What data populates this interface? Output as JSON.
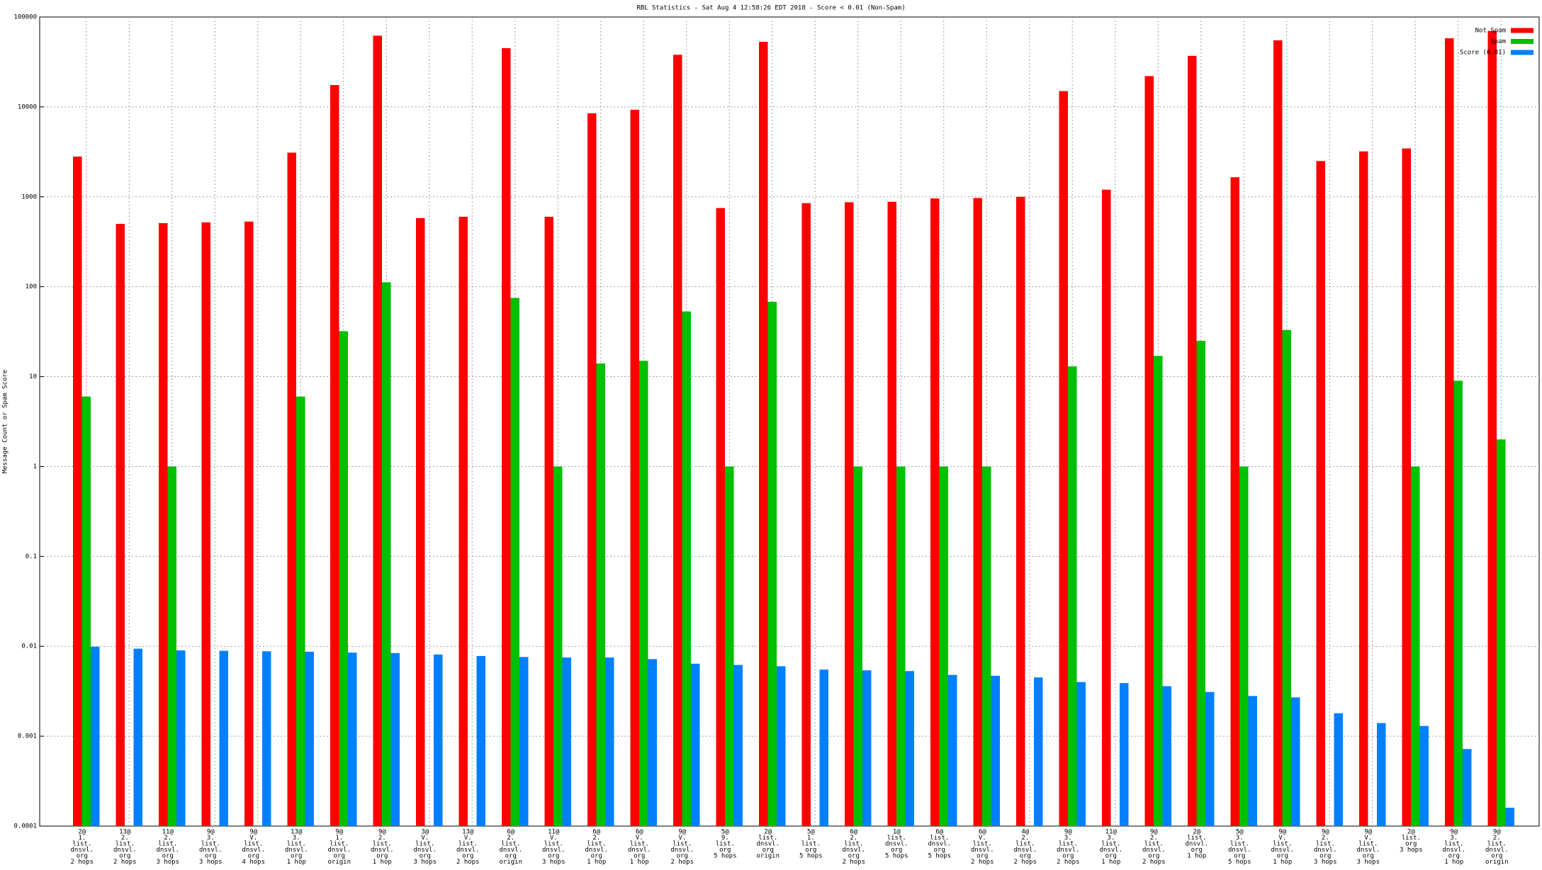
{
  "chart_data": {
    "type": "bar",
    "title": "RBL Statistics - Sat Aug  4 12:58:26 EDT 2018 - Score < 0.01 (Non-Spam)",
    "y_label": "Message Count or Spam Score",
    "log_scale": true,
    "grid": true,
    "legend": "top-right",
    "ylim": [
      0.0001,
      100000
    ],
    "yticks": [
      0.0001,
      0.001,
      0.01,
      0.1,
      1,
      10,
      100,
      1000,
      10000,
      100000
    ],
    "categories": [
      [
        "2@",
        "1.",
        "list.",
        "dnsvl.",
        "org",
        "2 hops"
      ],
      [
        "13@",
        "2.",
        "list.",
        "dnsvl.",
        "org",
        "2 hops"
      ],
      [
        "11@",
        "2.",
        "list.",
        "dnsvl.",
        "org",
        "3 hops"
      ],
      [
        "9@",
        "3.",
        "list.",
        "dnsvl.",
        "org",
        "3 hops"
      ],
      [
        "9@",
        "V.",
        "list.",
        "dnsvl.",
        "org",
        "4 hops"
      ],
      [
        "13@",
        "3.",
        "list.",
        "dnsvl.",
        "org",
        "1 hop"
      ],
      [
        "9@",
        "1.",
        "list.",
        "dnsvl.",
        "org",
        "origin"
      ],
      [
        "9@",
        "2.",
        "list.",
        "dnsvl.",
        "org",
        "1 hop"
      ],
      [
        "3@",
        "V.",
        "list.",
        "dnsvl.",
        "org",
        "3 hops"
      ],
      [
        "13@",
        "V.",
        "list.",
        "dnsvl.",
        "org",
        "2 hops"
      ],
      [
        "6@",
        "2.",
        "list.",
        "dnsvl.",
        "org",
        "origin"
      ],
      [
        "11@",
        "V.",
        "list.",
        "dnsvl.",
        "org",
        "3 hops"
      ],
      [
        "6@",
        "2.",
        "list.",
        "dnsvl.",
        "org",
        "1 hop"
      ],
      [
        "6@",
        "V.",
        "list.",
        "dnsvl.",
        "org",
        "1 hop"
      ],
      [
        "9@",
        "V.",
        "list.",
        "dnsvl.",
        "org",
        "2 hops"
      ],
      [
        "5@",
        "9.",
        "list.",
        "org",
        "5 hops"
      ],
      [
        "2@",
        "list.",
        "dnsvl.",
        "org",
        "origin"
      ],
      [
        "5@",
        "1.",
        "list.",
        "org",
        "5 hops"
      ],
      [
        "6@",
        "2.",
        "list.",
        "dnsvl.",
        "org",
        "2 hops"
      ],
      [
        "1@",
        "list.",
        "dnsvl.",
        "org",
        "5 hops"
      ],
      [
        "6@",
        "list.",
        "dnsvl.",
        "org",
        "5 hops"
      ],
      [
        "6@",
        "V.",
        "list.",
        "dnsvl.",
        "org",
        "2 hops"
      ],
      [
        "4@",
        "2.",
        "list.",
        "dnsvl.",
        "org",
        "2 hops"
      ],
      [
        "9@",
        "3.",
        "list.",
        "dnsvl.",
        "org",
        "2 hops"
      ],
      [
        "11@",
        "3.",
        "list.",
        "dnsvl.",
        "org",
        "1 hop"
      ],
      [
        "9@",
        "2.",
        "list.",
        "dnsvl.",
        "org",
        "2 hops"
      ],
      [
        "2@",
        "list.",
        "dnsvl.",
        "org",
        "1 hop"
      ],
      [
        "5@",
        "3.",
        "list.",
        "dnsvl.",
        "org",
        "5 hops"
      ],
      [
        "9@",
        "V.",
        "list.",
        "dnsvl.",
        "org",
        "1 hop"
      ],
      [
        "9@",
        "2.",
        "list.",
        "dnsvl.",
        "org",
        "3 hops"
      ],
      [
        "9@",
        "V.",
        "list.",
        "dnsvl.",
        "org",
        "3 hops"
      ],
      [
        "2@",
        "list.",
        "org",
        "3 hops"
      ],
      [
        "9@",
        "3.",
        "list.",
        "dnsvl.",
        "org",
        "1 hop"
      ],
      [
        "9@",
        "2.",
        "list.",
        "dnsvl.",
        "org",
        "origin"
      ]
    ],
    "series": [
      {
        "name": "Not Spam",
        "color": "#ff0000",
        "values": [
          2800,
          500,
          510,
          520,
          530,
          3100,
          17500,
          62000,
          580,
          600,
          45000,
          600,
          8500,
          9300,
          38000,
          750,
          53000,
          850,
          870,
          880,
          960,
          970,
          1000,
          15000,
          1200,
          22000,
          37000,
          1650,
          55000,
          2500,
          3200,
          3450,
          58000,
          70000
        ]
      },
      {
        "name": "Spam",
        "color": "#00c000",
        "values": [
          6,
          null,
          1,
          null,
          null,
          6,
          32,
          112,
          null,
          null,
          75,
          1,
          14,
          15,
          53,
          1,
          68,
          null,
          1,
          1,
          1,
          1,
          null,
          13,
          null,
          17,
          25,
          1,
          33,
          null,
          null,
          1,
          9,
          2
        ]
      },
      {
        "name": "Score (0.01)",
        "color": "#0080ff",
        "values": [
          0.0099,
          0.0094,
          0.009,
          0.0089,
          0.0088,
          0.0087,
          0.0085,
          0.0084,
          0.0081,
          0.0078,
          0.0076,
          0.0075,
          0.0075,
          0.0072,
          0.0064,
          0.0062,
          0.006,
          0.0055,
          0.0054,
          0.0053,
          0.0048,
          0.0047,
          0.0045,
          0.004,
          0.0039,
          0.0036,
          0.0031,
          0.0028,
          0.0027,
          0.0018,
          0.0014,
          0.0013,
          0.00072,
          0.00016
        ]
      }
    ]
  }
}
